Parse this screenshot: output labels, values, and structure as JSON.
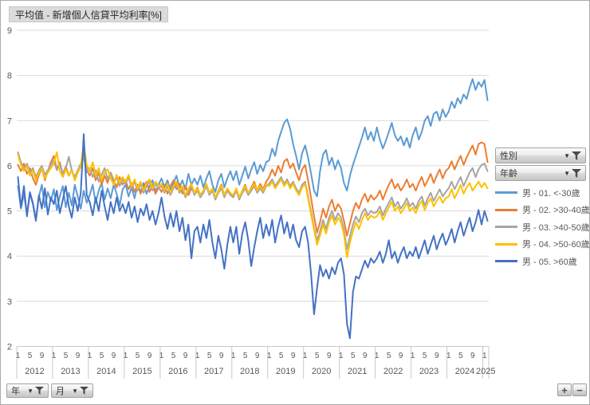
{
  "title_button": "平均值 - 新增個人信貸平均利率[%]",
  "filters": {
    "gender_label": "性別",
    "age_label": "年齡",
    "year_label": "年",
    "month_label": "月"
  },
  "zoom_controls": {
    "plus": "+",
    "minus": "−"
  },
  "colors": {
    "grid": "#d9d9d9",
    "axis_line": "#c9c9c9",
    "axis_text": "#595959",
    "border": "#ababab"
  },
  "chart_data": {
    "type": "line",
    "title": "平均值 - 新增個人信貸平均利率[%]",
    "x_frequency": "monthly",
    "x_start": "2012-01",
    "x_end": "2025-02",
    "years": [
      "2012",
      "2013",
      "2014",
      "2015",
      "2016",
      "2017",
      "2018",
      "2019",
      "2020",
      "2021",
      "2022",
      "2023",
      "2024",
      "2025"
    ],
    "month_tick_labels": [
      "1",
      "5",
      "9"
    ],
    "month_tick_indices": [
      0,
      4,
      8
    ],
    "ylim": [
      2,
      9
    ],
    "y_ticks": [
      2,
      3,
      4,
      5,
      6,
      7,
      8,
      9
    ],
    "grid": true,
    "legend_position": "right",
    "series": [
      {
        "name": "男 - 01. <-30歲",
        "color": "#5B9BD5",
        "values": [
          5.55,
          5.05,
          5.38,
          4.92,
          5.42,
          5.18,
          4.82,
          5.32,
          5.58,
          5.08,
          5.42,
          5.22,
          5.48,
          5.02,
          5.32,
          5.55,
          5.08,
          5.4,
          5.12,
          5.58,
          5.32,
          5.05,
          5.45,
          5.18,
          5.35,
          5.58,
          5.18,
          5.45,
          5.62,
          5.25,
          5.5,
          5.28,
          5.58,
          5.38,
          5.12,
          5.48,
          5.58,
          5.32,
          5.52,
          5.28,
          5.58,
          5.42,
          5.62,
          5.38,
          5.55,
          5.68,
          5.42,
          5.58,
          5.72,
          5.52,
          5.68,
          5.45,
          5.62,
          5.78,
          5.52,
          5.68,
          5.48,
          5.82,
          5.58,
          5.72,
          5.58,
          5.78,
          5.52,
          5.72,
          5.88,
          5.58,
          5.42,
          5.68,
          5.82,
          5.52,
          5.72,
          5.88,
          5.68,
          5.88,
          5.58,
          5.78,
          5.98,
          5.72,
          5.92,
          6.08,
          5.82,
          6.02,
          5.88,
          6.08,
          6.12,
          6.38,
          6.22,
          6.55,
          6.75,
          6.95,
          7.03,
          6.82,
          6.48,
          6.22,
          5.92,
          6.28,
          6.45,
          6.18,
          5.82,
          5.45,
          5.32,
          5.88,
          6.25,
          6.35,
          6.02,
          6.18,
          5.92,
          6.12,
          5.95,
          5.62,
          5.45,
          5.78,
          6.02,
          6.22,
          6.42,
          6.62,
          6.85,
          6.58,
          6.75,
          6.55,
          6.85,
          6.58,
          6.38,
          6.55,
          6.75,
          6.95,
          6.68,
          6.55,
          6.65,
          6.45,
          6.62,
          6.4,
          6.68,
          6.85,
          6.58,
          6.75,
          7.0,
          7.1,
          6.88,
          7.15,
          7.2,
          7.0,
          7.25,
          7.08,
          7.2,
          7.42,
          7.28,
          7.5,
          7.38,
          7.58,
          7.48,
          7.72,
          7.92,
          7.68,
          7.85,
          7.75,
          7.9,
          7.45
        ]
      },
      {
        "name": "男 - 02. >30-40歲",
        "color": "#ED7D31",
        "values": [
          6.02,
          5.88,
          6.05,
          5.82,
          5.95,
          5.72,
          5.58,
          5.8,
          5.95,
          5.68,
          5.88,
          6.08,
          6.22,
          5.92,
          6.08,
          5.82,
          5.98,
          5.78,
          5.92,
          5.68,
          5.85,
          5.98,
          6.28,
          5.92,
          5.78,
          5.95,
          5.68,
          5.85,
          5.58,
          5.78,
          5.62,
          5.85,
          5.68,
          5.52,
          5.75,
          5.58,
          5.68,
          5.48,
          5.62,
          5.42,
          5.58,
          5.38,
          5.52,
          5.65,
          5.42,
          5.58,
          5.38,
          5.52,
          5.42,
          5.58,
          5.38,
          5.55,
          5.68,
          5.48,
          5.6,
          5.38,
          5.55,
          5.35,
          5.5,
          5.4,
          5.52,
          5.35,
          5.45,
          5.58,
          5.38,
          5.48,
          5.28,
          5.45,
          5.58,
          5.35,
          5.48,
          5.38,
          5.32,
          5.48,
          5.28,
          5.45,
          5.58,
          5.38,
          5.52,
          5.65,
          5.45,
          5.6,
          5.48,
          5.65,
          5.75,
          5.92,
          5.78,
          6.0,
          5.85,
          6.1,
          6.15,
          5.95,
          6.05,
          5.85,
          5.68,
          5.92,
          6.02,
          5.68,
          5.28,
          4.88,
          4.52,
          4.75,
          5.05,
          4.85,
          5.1,
          5.25,
          5.0,
          5.15,
          5.05,
          4.78,
          4.45,
          4.72,
          5.0,
          5.18,
          5.05,
          5.25,
          5.38,
          5.2,
          5.35,
          5.25,
          5.32,
          5.45,
          5.25,
          5.42,
          5.58,
          5.7,
          5.5,
          5.6,
          5.45,
          5.55,
          5.7,
          5.52,
          5.6,
          5.45,
          5.62,
          5.75,
          5.55,
          5.68,
          5.82,
          5.62,
          5.78,
          5.92,
          5.72,
          5.88,
          5.95,
          6.1,
          5.92,
          6.08,
          6.22,
          6.02,
          6.18,
          6.32,
          6.45,
          6.25,
          6.48,
          6.52,
          6.48,
          6.08
        ]
      },
      {
        "name": "男 - 03. >40-50歲",
        "color": "#A5A5A5",
        "values": [
          6.3,
          6.08,
          5.92,
          6.05,
          5.85,
          5.95,
          5.75,
          5.9,
          6.0,
          5.8,
          5.9,
          6.02,
          6.12,
          5.9,
          6.05,
          5.8,
          5.95,
          6.2,
          5.9,
          5.75,
          5.9,
          6.05,
          6.18,
          5.85,
          5.95,
          5.75,
          5.9,
          5.65,
          5.8,
          5.95,
          5.7,
          5.85,
          5.6,
          5.75,
          5.55,
          5.7,
          5.6,
          5.75,
          5.5,
          5.65,
          5.45,
          5.6,
          5.4,
          5.55,
          5.65,
          5.45,
          5.6,
          5.5,
          5.55,
          5.4,
          5.55,
          5.35,
          5.5,
          5.6,
          5.4,
          5.5,
          5.3,
          5.45,
          5.55,
          5.35,
          5.45,
          5.3,
          5.4,
          5.55,
          5.35,
          5.45,
          5.25,
          5.4,
          5.5,
          5.3,
          5.45,
          5.35,
          5.3,
          5.45,
          5.25,
          5.4,
          5.5,
          5.35,
          5.45,
          5.55,
          5.4,
          5.5,
          5.4,
          5.55,
          5.6,
          5.7,
          5.55,
          5.65,
          5.75,
          5.6,
          5.7,
          5.55,
          5.65,
          5.5,
          5.4,
          5.58,
          5.65,
          5.32,
          4.98,
          4.62,
          4.35,
          4.55,
          4.8,
          4.6,
          4.85,
          5.0,
          4.8,
          4.95,
          4.85,
          4.58,
          4.15,
          4.45,
          4.7,
          4.88,
          4.75,
          4.95,
          5.05,
          4.9,
          5.0,
          4.95,
          4.98,
          5.1,
          4.9,
          5.05,
          5.18,
          5.3,
          5.1,
          5.2,
          5.05,
          5.15,
          5.28,
          5.1,
          5.18,
          5.05,
          5.22,
          5.32,
          5.12,
          5.28,
          5.4,
          5.22,
          5.35,
          5.48,
          5.32,
          5.42,
          5.5,
          5.65,
          5.48,
          5.62,
          5.75,
          5.55,
          5.7,
          5.85,
          5.95,
          5.75,
          5.92,
          6.02,
          6.05,
          5.88
        ]
      },
      {
        "name": "男 - 04. >50-60歲",
        "color": "#FFC000",
        "values": [
          6.25,
          6.02,
          5.88,
          6.0,
          5.78,
          5.9,
          5.68,
          5.85,
          5.95,
          5.72,
          5.85,
          5.95,
          6.05,
          6.3,
          5.88,
          5.75,
          5.92,
          5.78,
          5.9,
          5.68,
          5.85,
          6.0,
          6.48,
          6.02,
          5.88,
          6.08,
          5.78,
          5.95,
          5.68,
          5.85,
          5.92,
          5.72,
          5.58,
          5.8,
          5.62,
          5.75,
          5.65,
          5.8,
          5.55,
          5.7,
          5.5,
          5.65,
          5.45,
          5.6,
          5.7,
          5.5,
          5.65,
          5.55,
          5.6,
          5.45,
          5.6,
          5.4,
          5.55,
          5.65,
          5.45,
          5.55,
          5.35,
          5.5,
          5.6,
          5.4,
          5.5,
          5.35,
          5.45,
          5.6,
          5.4,
          5.5,
          5.3,
          5.45,
          5.55,
          5.35,
          5.5,
          5.4,
          5.35,
          5.5,
          5.3,
          5.45,
          5.55,
          5.4,
          5.5,
          5.6,
          5.45,
          5.55,
          5.45,
          5.6,
          5.55,
          5.65,
          5.5,
          5.6,
          5.7,
          5.55,
          5.65,
          5.5,
          5.6,
          5.45,
          5.35,
          5.52,
          5.6,
          5.28,
          4.92,
          4.58,
          4.25,
          4.45,
          4.7,
          4.5,
          4.75,
          4.9,
          4.7,
          4.85,
          4.75,
          4.48,
          3.97,
          4.3,
          4.55,
          4.75,
          4.6,
          4.8,
          4.95,
          4.8,
          4.9,
          4.85,
          4.88,
          5.0,
          4.8,
          4.95,
          5.08,
          5.2,
          5.0,
          5.1,
          4.95,
          5.05,
          5.18,
          5.0,
          5.08,
          4.95,
          5.12,
          5.22,
          5.02,
          5.18,
          5.28,
          5.1,
          5.22,
          5.32,
          5.18,
          5.28,
          5.32,
          5.48,
          5.28,
          5.42,
          5.58,
          5.38,
          5.52,
          5.62,
          5.45,
          5.55,
          5.65,
          5.52,
          5.62,
          5.5
        ]
      },
      {
        "name": "男 - 05. >60歲",
        "color": "#4472C4",
        "values": [
          5.75,
          5.08,
          5.55,
          4.88,
          5.4,
          5.15,
          4.78,
          5.35,
          5.05,
          5.5,
          4.92,
          5.3,
          5.15,
          5.45,
          4.95,
          5.25,
          5.55,
          5.1,
          4.85,
          5.3,
          5.0,
          5.4,
          6.7,
          5.35,
          5.2,
          4.9,
          5.3,
          5.0,
          5.45,
          5.1,
          4.8,
          5.2,
          4.95,
          5.3,
          5.0,
          5.15,
          4.95,
          5.2,
          4.85,
          5.1,
          4.75,
          5.05,
          4.9,
          5.15,
          4.8,
          5.0,
          4.7,
          4.95,
          5.3,
          4.88,
          4.6,
          4.95,
          4.65,
          5.0,
          4.55,
          4.85,
          4.35,
          4.7,
          3.95,
          4.55,
          4.65,
          4.3,
          4.7,
          4.4,
          4.8,
          4.3,
          3.95,
          4.45,
          4.15,
          3.72,
          4.25,
          4.65,
          4.3,
          4.65,
          4.05,
          4.5,
          4.75,
          4.35,
          3.78,
          4.2,
          4.55,
          4.85,
          4.4,
          4.7,
          4.45,
          4.8,
          4.3,
          4.65,
          4.9,
          4.5,
          4.75,
          4.4,
          4.7,
          4.35,
          4.2,
          4.55,
          4.65,
          4.3,
          3.6,
          2.71,
          3.3,
          3.8,
          3.55,
          3.7,
          3.5,
          3.75,
          3.6,
          3.85,
          3.95,
          3.6,
          2.5,
          2.18,
          3.2,
          3.55,
          3.5,
          3.7,
          3.9,
          3.75,
          3.95,
          3.85,
          3.95,
          4.1,
          3.85,
          4.05,
          4.35,
          3.95,
          4.1,
          3.85,
          4.05,
          4.2,
          3.95,
          4.1,
          4.0,
          4.2,
          3.95,
          4.15,
          4.35,
          4.05,
          4.25,
          4.45,
          4.15,
          4.35,
          4.5,
          4.25,
          4.4,
          4.6,
          4.3,
          4.55,
          4.75,
          4.45,
          4.65,
          4.85,
          4.55,
          4.75,
          5.02,
          4.7,
          5.0,
          4.78
        ]
      }
    ]
  }
}
